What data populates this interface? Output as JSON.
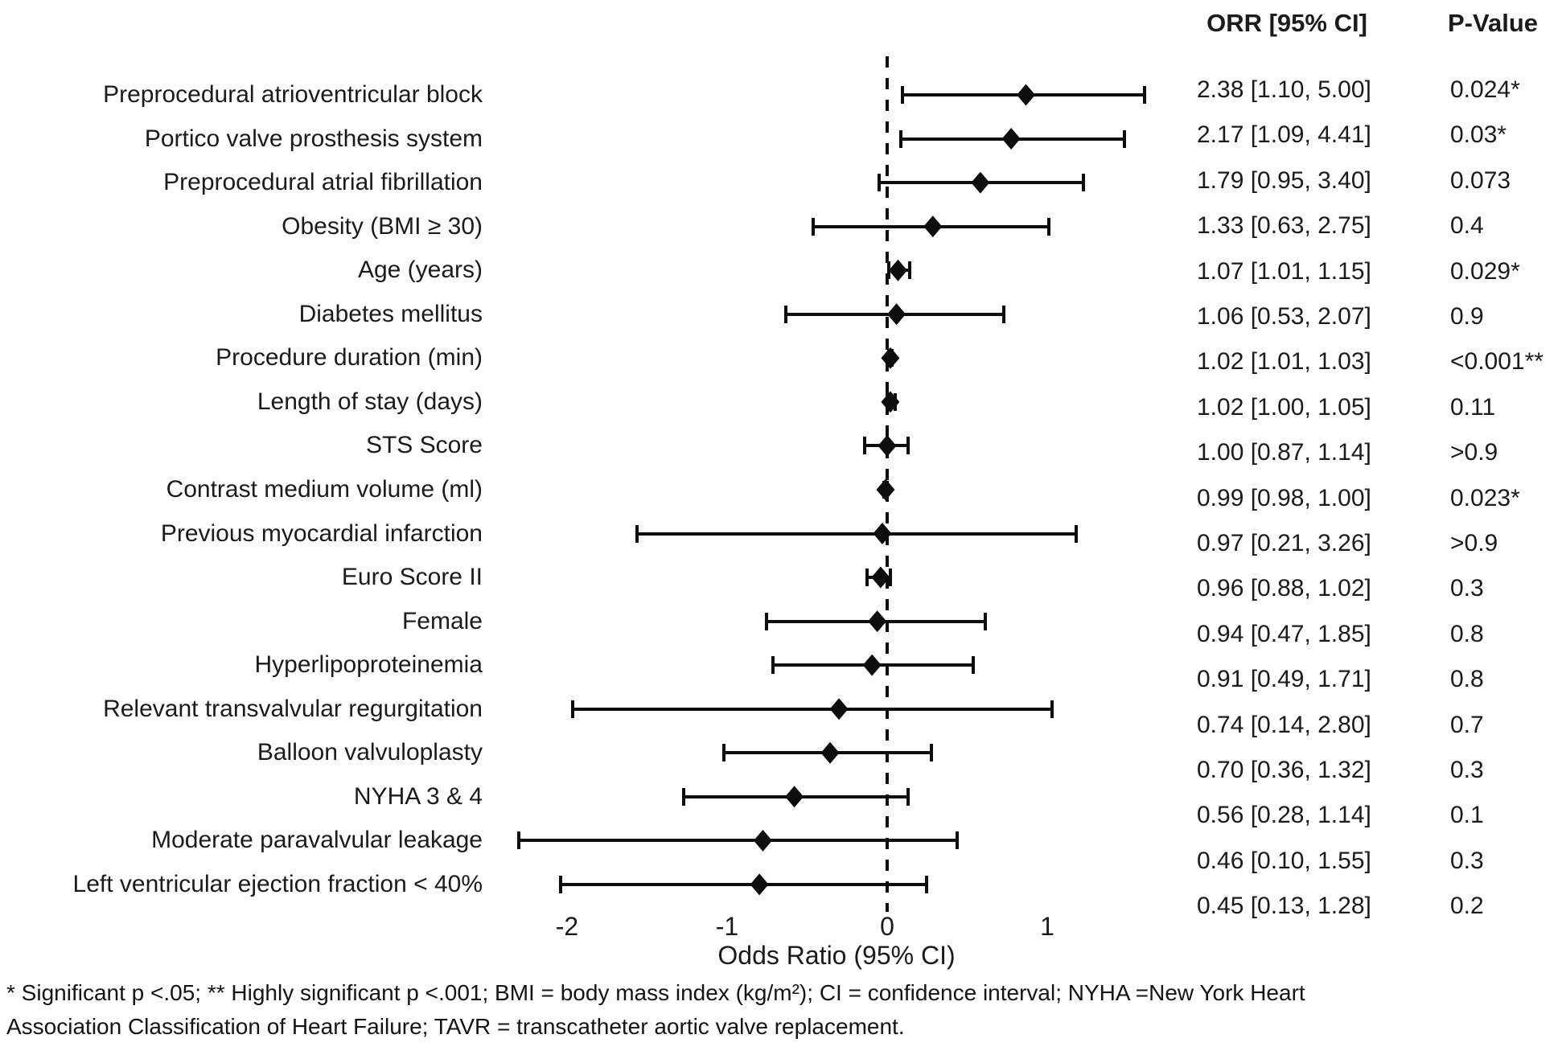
{
  "headers": {
    "orr": "ORR [95% CI]",
    "pvalue": "P-Value"
  },
  "chart_data": {
    "type": "forest",
    "scale": "log (natural log of odds ratio)",
    "xlabel": "Odds Ratio (95% CI)",
    "x_axis_ticks": {
      "labels": [
        "-2",
        "-1",
        "0",
        "1"
      ],
      "values_ln": [
        -2,
        -1,
        0,
        1
      ]
    },
    "xlim_ln": [
      -2.5,
      1.75
    ],
    "reference_line_ln": 0,
    "grid": "off",
    "marker": "filled-diamond",
    "rows": [
      {
        "label": "Preprocedural atrioventricular block",
        "or": 2.38,
        "lo": 1.1,
        "hi": 5.0,
        "orr_text": "2.38 [1.10, 5.00]",
        "p": "0.024*"
      },
      {
        "label": "Portico valve prosthesis system",
        "or": 2.17,
        "lo": 1.09,
        "hi": 4.41,
        "orr_text": "2.17 [1.09, 4.41]",
        "p": "0.03*"
      },
      {
        "label": "Preprocedural atrial fibrillation",
        "or": 1.79,
        "lo": 0.95,
        "hi": 3.4,
        "orr_text": "1.79 [0.95, 3.40]",
        "p": "0.073"
      },
      {
        "label": "Obesity (BMI ≥ 30)",
        "or": 1.33,
        "lo": 0.63,
        "hi": 2.75,
        "orr_text": "1.33 [0.63, 2.75]",
        "p": "0.4"
      },
      {
        "label": "Age (years)",
        "or": 1.07,
        "lo": 1.01,
        "hi": 1.15,
        "orr_text": "1.07 [1.01, 1.15]",
        "p": "0.029*"
      },
      {
        "label": "Diabetes mellitus",
        "or": 1.06,
        "lo": 0.53,
        "hi": 2.07,
        "orr_text": "1.06 [0.53, 2.07]",
        "p": "0.9"
      },
      {
        "label": "Procedure duration (min)",
        "or": 1.02,
        "lo": 1.01,
        "hi": 1.03,
        "orr_text": "1.02 [1.01, 1.03]",
        "p": "<0.001**"
      },
      {
        "label": "Length of stay (days)",
        "or": 1.02,
        "lo": 1.0,
        "hi": 1.05,
        "orr_text": "1.02 [1.00, 1.05]",
        "p": "0.11"
      },
      {
        "label": "STS Score",
        "or": 1.0,
        "lo": 0.87,
        "hi": 1.14,
        "orr_text": "1.00 [0.87, 1.14]",
        "p": ">0.9"
      },
      {
        "label": "Contrast medium volume (ml)",
        "or": 0.99,
        "lo": 0.98,
        "hi": 1.0,
        "orr_text": "0.99 [0.98, 1.00]",
        "p": "0.023*"
      },
      {
        "label": "Previous myocardial infarction",
        "or": 0.97,
        "lo": 0.21,
        "hi": 3.26,
        "orr_text": "0.97 [0.21, 3.26]",
        "p": ">0.9"
      },
      {
        "label": "Euro Score II",
        "or": 0.96,
        "lo": 0.88,
        "hi": 1.02,
        "orr_text": "0.96 [0.88, 1.02]",
        "p": "0.3"
      },
      {
        "label": "Female",
        "or": 0.94,
        "lo": 0.47,
        "hi": 1.85,
        "orr_text": "0.94 [0.47, 1.85]",
        "p": "0.8"
      },
      {
        "label": "Hyperlipoproteinemia",
        "or": 0.91,
        "lo": 0.49,
        "hi": 1.71,
        "orr_text": "0.91 [0.49, 1.71]",
        "p": "0.8"
      },
      {
        "label": "Relevant transvalvular regurgitation",
        "or": 0.74,
        "lo": 0.14,
        "hi": 2.8,
        "orr_text": "0.74 [0.14, 2.80]",
        "p": "0.7"
      },
      {
        "label": "Balloon valvuloplasty",
        "or": 0.7,
        "lo": 0.36,
        "hi": 1.32,
        "orr_text": "0.70 [0.36, 1.32]",
        "p": "0.3"
      },
      {
        "label": "NYHA 3 & 4",
        "or": 0.56,
        "lo": 0.28,
        "hi": 1.14,
        "orr_text": "0.56 [0.28, 1.14]",
        "p": "0.1"
      },
      {
        "label": "Moderate paravalvular leakage",
        "or": 0.46,
        "lo": 0.1,
        "hi": 1.55,
        "orr_text": "0.46 [0.10, 1.55]",
        "p": "0.3"
      },
      {
        "label": "Left ventricular ejection fraction < 40%",
        "or": 0.45,
        "lo": 0.13,
        "hi": 1.28,
        "orr_text": "0.45 [0.13, 1.28]",
        "p": "0.2"
      }
    ]
  },
  "footnote": {
    "line1": "* Significant p <.05; ** Highly significant p <.001; BMI = body mass index (kg/m²); CI = confidence interval; NYHA =New York Heart",
    "line2": "Association Classification of Heart Failure; TAVR  = transcatheter aortic valve replacement."
  },
  "colors": {
    "ink": "#0d0d0d",
    "text": "#1b1b1b",
    "background": "#ffffff"
  }
}
